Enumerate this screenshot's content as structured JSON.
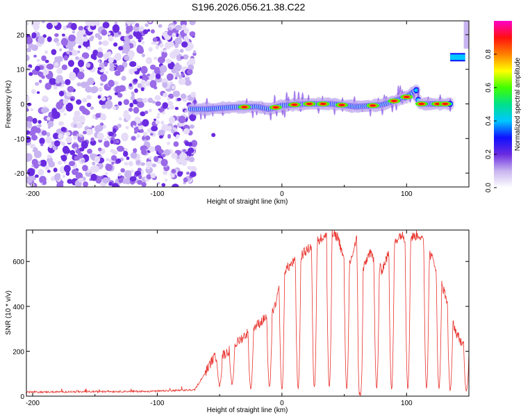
{
  "title": "S196.2026.056.21.38.C22",
  "chart_data": [
    {
      "type": "heatmap",
      "title": "S196.2026.056.21.38.C22",
      "xlabel": "Height of straight line (km)",
      "ylabel": "Frequency (Hz)",
      "xlim": [
        -205,
        150
      ],
      "ylim": [
        -24,
        24
      ],
      "xticks": [
        -200,
        -100,
        0,
        100
      ],
      "yticks": [
        -20,
        -10,
        0,
        10,
        20
      ],
      "xtick_labels": [
        "-200",
        "-100",
        "0",
        "100"
      ],
      "ytick_labels": [
        "-20",
        "-10",
        "0",
        "10",
        "20"
      ],
      "noise_region_x": [
        -205,
        -73
      ],
      "ridge": {
        "x": [
          -73,
          -60,
          -40,
          -20,
          -10,
          0,
          20,
          40,
          60,
          80,
          100,
          108,
          110,
          135
        ],
        "y": [
          -1.5,
          -1.5,
          -1.0,
          -0.8,
          -1.5,
          -0.5,
          0.0,
          0.0,
          -0.8,
          -0.3,
          2.0,
          4.0,
          0.0,
          0.0
        ]
      },
      "peaks_x": [
        -30,
        -5,
        10,
        22,
        33,
        48,
        73,
        90,
        100,
        112,
        125,
        131
      ],
      "secondary_band": {
        "x": [
          135,
          147
        ],
        "y": 13.5
      },
      "colorbar": {
        "label": "Normalized spectral amplitude",
        "range": [
          0,
          1
        ],
        "ticks": [
          0.0,
          0.2,
          0.4,
          0.6,
          0.8
        ],
        "tick_labels": [
          "0.0",
          "0.2",
          "0.4",
          "0.6",
          "0.8"
        ],
        "colormap": [
          "#ffffff",
          "#c8b4f0",
          "#6a2be0",
          "#1010ff",
          "#00c8ff",
          "#00e08a",
          "#40ff00",
          "#ffff00",
          "#ff8000",
          "#ff1010",
          "#ff00c8"
        ]
      }
    },
    {
      "type": "line",
      "xlabel": "Height of straight line (km)",
      "ylabel": "SNR (10 * v/v)",
      "xlim": [
        -205,
        150
      ],
      "ylim": [
        0,
        740
      ],
      "xticks": [
        -200,
        -100,
        0,
        100
      ],
      "yticks": [
        0,
        200,
        400,
        600
      ],
      "xtick_labels": [
        "-200",
        "-100",
        "0",
        "100"
      ],
      "ytick_labels": [
        "0",
        "200",
        "400",
        "600"
      ],
      "series": [
        {
          "name": "SNR",
          "color": "#e8302a",
          "envelope_x": [
            -205,
            -100,
            -70,
            -62,
            -55,
            -45,
            -30,
            -15,
            -5,
            0,
            10,
            20,
            30,
            40,
            45,
            50,
            55,
            60,
            62,
            65,
            70,
            80,
            88,
            95,
            100,
            110,
            120,
            125,
            132,
            140,
            148,
            150
          ],
          "envelope_y": [
            18,
            22,
            28,
            100,
            170,
            190,
            270,
            340,
            400,
            550,
            600,
            650,
            700,
            720,
            710,
            600,
            600,
            700,
            0,
            560,
            640,
            560,
            670,
            720,
            700,
            720,
            620,
            560,
            430,
            280,
            200,
            220
          ],
          "dropouts_x": [
            -50,
            -40,
            -25,
            -10,
            0,
            13,
            26,
            38,
            52,
            63,
            76,
            88,
            101,
            116,
            126,
            135,
            148
          ],
          "dropout_levels_y": [
            40,
            50,
            30,
            35,
            20,
            30,
            30,
            30,
            30,
            0,
            30,
            25,
            30,
            30,
            30,
            20,
            20
          ]
        }
      ]
    }
  ]
}
